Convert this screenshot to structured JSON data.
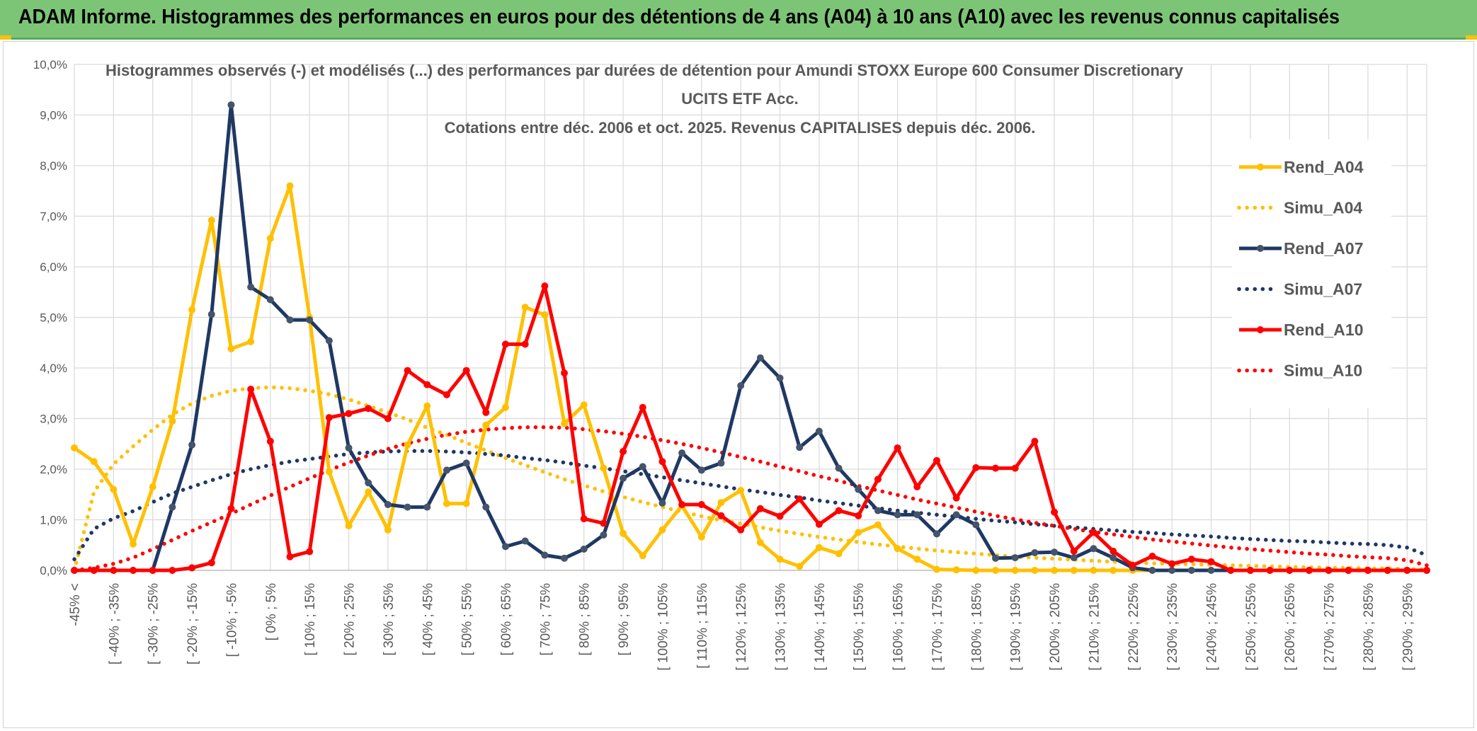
{
  "header": {
    "title": "ADAM Informe. Histogrammes des performances en euros pour des détentions de 4 ans (A04) à 10 ans (A10) avec les revenus connus capitalisés"
  },
  "colors": {
    "banner": "#7cc576",
    "a04": "#ffc000",
    "a07": "#1f3864",
    "a07_marker": "#44546a",
    "a10": "#ff0000",
    "grid": "#d9d9d9"
  },
  "chart_data": {
    "type": "line",
    "title_lines": [
      "Histogrammes observés (-) et modélisés (...) des performances par durées de détention pour Amundi STOXX Europe 600 Consumer Discretionary",
      "UCITS ETF Acc.",
      "Cotations entre déc. 2006 et oct. 2025. Revenus CAPITALISES depuis déc. 2006."
    ],
    "ylim": [
      0,
      10
    ],
    "y_ticks": [
      "0,0%",
      "1,0%",
      "2,0%",
      "3,0%",
      "4,0%",
      "5,0%",
      "6,0%",
      "7,0%",
      "8,0%",
      "9,0%",
      "10,0%"
    ],
    "x_tick_labels": [
      "-45% <",
      "[ -40% ; -35%",
      "[ -30% ; -25%",
      "[ -20% ; -15%",
      "[ -10% ; -5%",
      "[ 0% ; 5%",
      "[ 10% ; 15%",
      "[ 20% ; 25%",
      "[ 30% ; 35%",
      "[ 40% ; 45%",
      "[ 50% ; 55%",
      "[ 60% ; 65%",
      "[ 70% ; 75%",
      "[ 80% ; 85%",
      "[ 90% ; 95%",
      "[ 100% ; 105%",
      "[ 110% ; 115%",
      "[ 120% ; 125%",
      "[ 130% ; 135%",
      "[ 140% ; 145%",
      "[ 150% ; 155%",
      "[ 160% ; 165%",
      "[ 170% ; 175%",
      "[ 180% ; 185%",
      "[ 190% ; 195%",
      "[ 200% ; 205%",
      "[ 210% ; 215%",
      "[ 220% ; 225%",
      "[ 230% ; 235%",
      "[ 240% ; 245%",
      "[ 250% ; 255%",
      "[ 260% ; 265%",
      "[ 270% ; 275%",
      "[ 280% ; 285%",
      "[ 290% ; 295%"
    ],
    "x_categories_count": 70,
    "legend_position": "right",
    "grid": true,
    "series": [
      {
        "name": "Rend_A04",
        "style": "solid",
        "color": "#ffc000",
        "values": [
          2.42,
          2.15,
          1.6,
          0.52,
          1.65,
          2.95,
          5.15,
          6.92,
          4.38,
          4.52,
          6.56,
          7.6,
          5.0,
          1.95,
          0.88,
          1.55,
          0.8,
          2.48,
          3.25,
          1.32,
          1.32,
          2.87,
          3.22,
          5.2,
          5.05,
          2.9,
          3.27,
          2.02,
          0.73,
          0.29,
          0.8,
          1.28,
          0.66,
          1.34,
          1.58,
          0.55,
          0.22,
          0.08,
          0.45,
          0.33,
          0.75,
          0.9,
          0.43,
          0.22,
          0.02,
          0.01,
          0.0,
          0.0,
          0.0,
          0.0,
          0.0,
          0.0,
          0.0,
          0.0,
          0.0,
          0.0,
          0.0,
          0.0,
          0.0,
          0.0,
          0.0,
          0.0,
          0.0,
          0.0,
          0.0,
          0.0,
          0.0,
          0.0,
          0.0,
          0.0
        ]
      },
      {
        "name": "Simu_A04",
        "style": "dotted",
        "color": "#ffc000",
        "values": [
          0.0,
          1.55,
          2.1,
          2.45,
          2.78,
          3.08,
          3.3,
          3.45,
          3.55,
          3.6,
          3.62,
          3.6,
          3.55,
          3.48,
          3.38,
          3.25,
          3.12,
          2.98,
          2.82,
          2.68,
          2.52,
          2.37,
          2.22,
          2.08,
          1.94,
          1.8,
          1.68,
          1.56,
          1.45,
          1.35,
          1.25,
          1.16,
          1.07,
          0.99,
          0.92,
          0.85,
          0.78,
          0.72,
          0.66,
          0.61,
          0.56,
          0.51,
          0.47,
          0.43,
          0.39,
          0.36,
          0.33,
          0.3,
          0.27,
          0.25,
          0.23,
          0.21,
          0.19,
          0.17,
          0.15,
          0.14,
          0.13,
          0.12,
          0.11,
          0.1,
          0.09,
          0.08,
          0.07,
          0.06,
          0.05,
          0.05,
          0.04,
          0.04,
          0.03,
          0.02
        ]
      },
      {
        "name": "Rend_A07",
        "style": "solid",
        "color": "#1f3864",
        "values": [
          0.0,
          0.0,
          0.0,
          0.0,
          0.0,
          1.25,
          2.48,
          5.06,
          9.2,
          5.6,
          5.35,
          4.95,
          4.95,
          4.54,
          2.42,
          1.73,
          1.3,
          1.25,
          1.25,
          1.98,
          2.12,
          1.25,
          0.47,
          0.58,
          0.3,
          0.24,
          0.42,
          0.7,
          1.82,
          2.05,
          1.33,
          2.32,
          1.98,
          2.12,
          3.65,
          4.2,
          3.8,
          2.43,
          2.75,
          2.02,
          1.6,
          1.18,
          1.1,
          1.1,
          0.72,
          1.1,
          0.9,
          0.24,
          0.25,
          0.35,
          0.36,
          0.25,
          0.43,
          0.25,
          0.05,
          0.0,
          0.0,
          0.0,
          0.0,
          0.0,
          0.0,
          0.0,
          0.0,
          0.0,
          0.0,
          0.0,
          0.0,
          0.0,
          0.0,
          0.0
        ]
      },
      {
        "name": "Simu_A07",
        "style": "dotted",
        "color": "#1f3864",
        "values": [
          0.22,
          0.82,
          1.03,
          1.17,
          1.35,
          1.52,
          1.65,
          1.78,
          1.9,
          2.0,
          2.08,
          2.15,
          2.2,
          2.25,
          2.3,
          2.33,
          2.35,
          2.36,
          2.36,
          2.35,
          2.33,
          2.3,
          2.27,
          2.22,
          2.18,
          2.13,
          2.07,
          2.02,
          1.96,
          1.9,
          1.84,
          1.78,
          1.72,
          1.66,
          1.6,
          1.55,
          1.49,
          1.44,
          1.38,
          1.33,
          1.28,
          1.23,
          1.18,
          1.14,
          1.1,
          1.06,
          1.02,
          0.98,
          0.95,
          0.91,
          0.88,
          0.85,
          0.82,
          0.79,
          0.76,
          0.74,
          0.71,
          0.69,
          0.67,
          0.64,
          0.62,
          0.6,
          0.58,
          0.57,
          0.55,
          0.53,
          0.52,
          0.5,
          0.45,
          0.3
        ]
      },
      {
        "name": "Rend_A10",
        "style": "solid",
        "color": "#ff0000",
        "values": [
          0.0,
          0.0,
          0.0,
          0.0,
          0.0,
          0.0,
          0.05,
          0.15,
          1.22,
          3.58,
          2.55,
          0.27,
          0.37,
          3.02,
          3.1,
          3.2,
          3.0,
          3.95,
          3.67,
          3.47,
          3.95,
          3.12,
          4.47,
          4.47,
          5.62,
          3.9,
          1.02,
          0.93,
          2.35,
          3.22,
          2.15,
          1.3,
          1.3,
          1.08,
          0.8,
          1.22,
          1.07,
          1.41,
          0.91,
          1.18,
          1.08,
          1.8,
          2.42,
          1.65,
          2.17,
          1.43,
          2.03,
          2.02,
          2.02,
          2.55,
          1.15,
          0.38,
          0.75,
          0.38,
          0.1,
          0.28,
          0.13,
          0.22,
          0.17,
          0.0,
          0.0,
          0.0,
          0.0,
          0.0,
          0.0,
          0.0,
          0.0,
          0.0,
          0.0,
          0.0
        ]
      },
      {
        "name": "Simu_A10",
        "style": "dotted",
        "color": "#ff0000",
        "values": [
          0.0,
          0.05,
          0.13,
          0.25,
          0.42,
          0.6,
          0.78,
          0.95,
          1.12,
          1.3,
          1.48,
          1.65,
          1.82,
          1.98,
          2.13,
          2.27,
          2.4,
          2.51,
          2.6,
          2.68,
          2.74,
          2.78,
          2.81,
          2.83,
          2.83,
          2.82,
          2.79,
          2.75,
          2.7,
          2.64,
          2.57,
          2.5,
          2.42,
          2.33,
          2.24,
          2.15,
          2.05,
          1.96,
          1.86,
          1.77,
          1.67,
          1.58,
          1.49,
          1.4,
          1.32,
          1.24,
          1.16,
          1.08,
          1.01,
          0.94,
          0.88,
          0.82,
          0.76,
          0.71,
          0.66,
          0.61,
          0.57,
          0.53,
          0.49,
          0.45,
          0.42,
          0.39,
          0.36,
          0.33,
          0.31,
          0.28,
          0.26,
          0.24,
          0.2,
          0.1
        ]
      }
    ]
  }
}
